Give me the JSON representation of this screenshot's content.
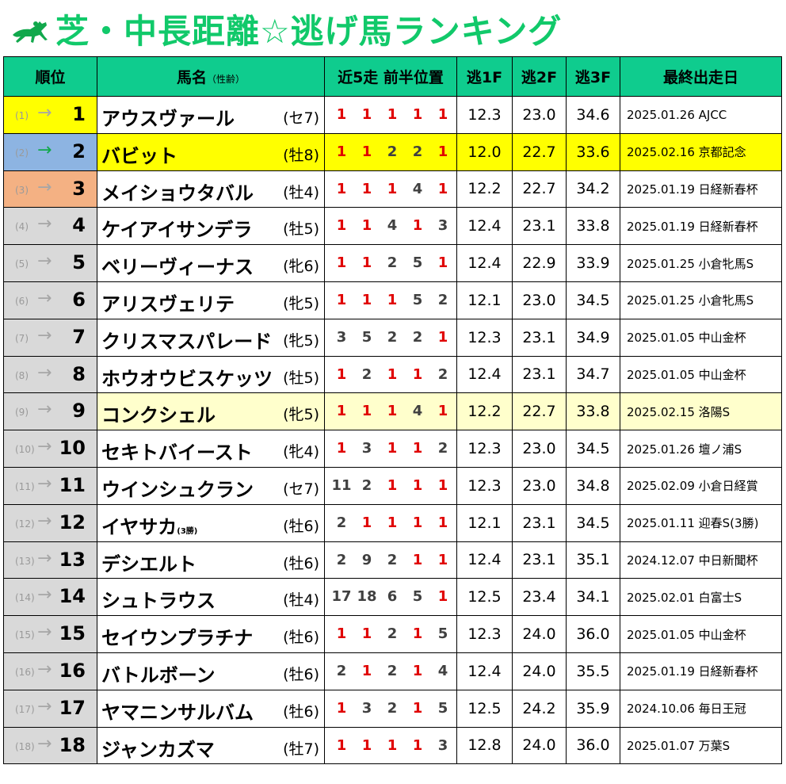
{
  "title": "芝・中長距離☆逃げ馬ランキング",
  "headers": {
    "rank": "順位",
    "name": "馬名",
    "name_sub": "（性齢）",
    "recent": "近5走 前半位置",
    "f1": "逃1F",
    "f2": "逃2F",
    "f3": "逃3F",
    "last": "最終出走日"
  },
  "colors": {
    "header_bg": "#0fcc8e",
    "title": "#11c96a",
    "gold": "#ffff00",
    "silver_blue": "#8db4e2",
    "bronze": "#f4b183",
    "highlight_pale": "#ffffcc",
    "win_red": "#e00000"
  },
  "rows": [
    {
      "prev": "(1)",
      "arrow": "→",
      "rank": "1",
      "name": "アウスヴァール",
      "sub": "",
      "sexage": "(セ7)",
      "runs": [
        "1",
        "1",
        "1",
        "1",
        "1"
      ],
      "f1": "12.3",
      "f2": "23.0",
      "f3": "34.6",
      "last": "2025.01.26 AJCC"
    },
    {
      "prev": "(2)",
      "arrow": "→",
      "rank": "2",
      "name": "バビット",
      "sub": "",
      "sexage": "(牡8)",
      "runs": [
        "1",
        "1",
        "2",
        "2",
        "1"
      ],
      "f1": "12.0",
      "f2": "22.7",
      "f3": "33.6",
      "last": "2025.02.16 京都記念"
    },
    {
      "prev": "(3)",
      "arrow": "→",
      "rank": "3",
      "name": "メイショウタバル",
      "sub": "",
      "sexage": "(牡4)",
      "runs": [
        "1",
        "1",
        "1",
        "4",
        "1"
      ],
      "f1": "12.2",
      "f2": "22.7",
      "f3": "34.2",
      "last": "2025.01.19 日経新春杯"
    },
    {
      "prev": "(4)",
      "arrow": "→",
      "rank": "4",
      "name": "ケイアイサンデラ",
      "sub": "",
      "sexage": "(牡5)",
      "runs": [
        "1",
        "1",
        "4",
        "1",
        "3"
      ],
      "f1": "12.4",
      "f2": "23.1",
      "f3": "33.8",
      "last": "2025.01.19 日経新春杯"
    },
    {
      "prev": "(5)",
      "arrow": "→",
      "rank": "5",
      "name": "ベリーヴィーナス",
      "sub": "",
      "sexage": "(牝6)",
      "runs": [
        "1",
        "1",
        "2",
        "5",
        "1"
      ],
      "f1": "12.4",
      "f2": "22.9",
      "f3": "33.9",
      "last": "2025.01.25 小倉牝馬S"
    },
    {
      "prev": "(6)",
      "arrow": "→",
      "rank": "6",
      "name": "アリスヴェリテ",
      "sub": "",
      "sexage": "(牝5)",
      "runs": [
        "1",
        "1",
        "1",
        "5",
        "2"
      ],
      "f1": "12.1",
      "f2": "23.0",
      "f3": "34.5",
      "last": "2025.01.25 小倉牝馬S"
    },
    {
      "prev": "(7)",
      "arrow": "→",
      "rank": "7",
      "name": "クリスマスパレード",
      "sub": "",
      "sexage": "(牝5)",
      "runs": [
        "3",
        "5",
        "2",
        "2",
        "1"
      ],
      "f1": "12.3",
      "f2": "23.1",
      "f3": "34.9",
      "last": "2025.01.05 中山金杯"
    },
    {
      "prev": "(8)",
      "arrow": "→",
      "rank": "8",
      "name": "ホウオウビスケッツ",
      "sub": "",
      "sexage": "(牡5)",
      "runs": [
        "1",
        "2",
        "1",
        "1",
        "2"
      ],
      "f1": "12.4",
      "f2": "23.1",
      "f3": "34.7",
      "last": "2025.01.05 中山金杯"
    },
    {
      "prev": "(9)",
      "arrow": "→",
      "rank": "9",
      "name": "コンクシェル",
      "sub": "",
      "sexage": "(牝5)",
      "runs": [
        "1",
        "1",
        "1",
        "4",
        "1"
      ],
      "f1": "12.2",
      "f2": "22.7",
      "f3": "33.8",
      "last": "2025.02.15 洛陽S"
    },
    {
      "prev": "(10)",
      "arrow": "→",
      "rank": "10",
      "name": "セキトバイースト",
      "sub": "",
      "sexage": "(牝4)",
      "runs": [
        "1",
        "3",
        "1",
        "1",
        "2"
      ],
      "f1": "12.3",
      "f2": "23.0",
      "f3": "34.5",
      "last": "2025.01.26 壇ノ浦S"
    },
    {
      "prev": "(11)",
      "arrow": "→",
      "rank": "11",
      "name": "ウインシュクラン",
      "sub": "",
      "sexage": "(セ7)",
      "runs": [
        "11",
        "2",
        "1",
        "1",
        "1"
      ],
      "f1": "12.3",
      "f2": "23.0",
      "f3": "34.8",
      "last": "2025.02.09 小倉日経賞"
    },
    {
      "prev": "(12)",
      "arrow": "→",
      "rank": "12",
      "name": "イヤサカ",
      "sub": "(3勝)",
      "sexage": "(牡6)",
      "runs": [
        "2",
        "1",
        "1",
        "1",
        "1"
      ],
      "f1": "12.1",
      "f2": "23.1",
      "f3": "34.5",
      "last": "2025.01.11 迎春S(3勝)"
    },
    {
      "prev": "(13)",
      "arrow": "→",
      "rank": "13",
      "name": "デシエルト",
      "sub": "",
      "sexage": "(牡6)",
      "runs": [
        "2",
        "9",
        "2",
        "1",
        "1"
      ],
      "f1": "12.4",
      "f2": "23.1",
      "f3": "35.1",
      "last": "2024.12.07 中日新聞杯"
    },
    {
      "prev": "(14)",
      "arrow": "→",
      "rank": "14",
      "name": "シュトラウス",
      "sub": "",
      "sexage": "(牡4)",
      "runs": [
        "17",
        "18",
        "6",
        "5",
        "1"
      ],
      "f1": "12.5",
      "f2": "23.4",
      "f3": "34.1",
      "last": "2025.02.01 白富士S"
    },
    {
      "prev": "(15)",
      "arrow": "→",
      "rank": "15",
      "name": "セイウンプラチナ",
      "sub": "",
      "sexage": "(牡6)",
      "runs": [
        "1",
        "1",
        "2",
        "1",
        "5"
      ],
      "f1": "12.3",
      "f2": "24.0",
      "f3": "36.0",
      "last": "2025.01.05 中山金杯"
    },
    {
      "prev": "(16)",
      "arrow": "→",
      "rank": "16",
      "name": "バトルボーン",
      "sub": "",
      "sexage": "(牡6)",
      "runs": [
        "2",
        "1",
        "2",
        "1",
        "4"
      ],
      "f1": "12.4",
      "f2": "24.0",
      "f3": "35.5",
      "last": "2025.01.19 日経新春杯"
    },
    {
      "prev": "(17)",
      "arrow": "→",
      "rank": "17",
      "name": "ヤマニンサルバム",
      "sub": "",
      "sexage": "(牡6)",
      "runs": [
        "1",
        "3",
        "2",
        "1",
        "5"
      ],
      "f1": "12.5",
      "f2": "24.2",
      "f3": "35.9",
      "last": "2024.10.06 毎日王冠"
    },
    {
      "prev": "(18)",
      "arrow": "→",
      "rank": "18",
      "name": "ジャンカズマ",
      "sub": "",
      "sexage": "(牡7)",
      "runs": [
        "1",
        "1",
        "1",
        "1",
        "3"
      ],
      "f1": "12.8",
      "f2": "24.0",
      "f3": "36.0",
      "last": "2025.01.07 万葉S"
    }
  ]
}
